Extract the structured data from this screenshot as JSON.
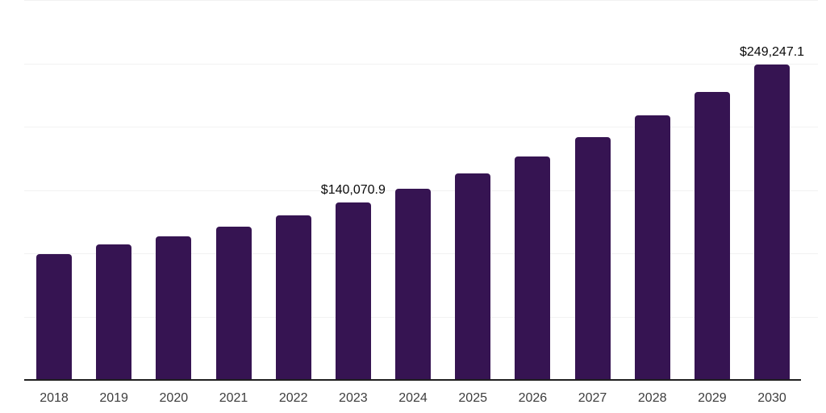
{
  "chart_data": {
    "type": "bar",
    "title": "",
    "xlabel": "",
    "ylabel": "",
    "categories": [
      "2018",
      "2019",
      "2020",
      "2021",
      "2022",
      "2023",
      "2024",
      "2025",
      "2026",
      "2027",
      "2028",
      "2029",
      "2030"
    ],
    "values": [
      99400,
      107000,
      113400,
      121000,
      129900,
      140070.9,
      151000,
      163000,
      176400,
      191700,
      208900,
      227400,
      249247.1
    ],
    "data_labels": [
      {
        "category": "2023",
        "text": "$140,070.9"
      },
      {
        "category": "2030",
        "text": "$249,247.1"
      }
    ],
    "ylim": [
      0,
      300000
    ],
    "gridline_step": 50000,
    "grid": true,
    "y_axis_tick_labels_visible": false,
    "legend_position": "none"
  },
  "colors": {
    "bar": "#361452",
    "axis_line": "#1f1f1f",
    "gridline": "#f2f2f2",
    "tick_label": "#3d3d3d",
    "data_label": "#0a0a0a",
    "background": "#ffffff"
  }
}
